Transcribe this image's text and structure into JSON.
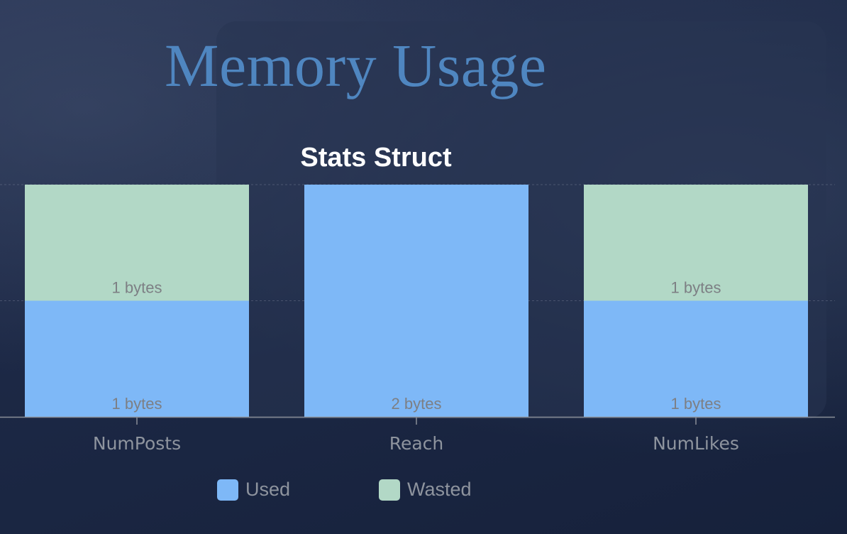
{
  "page": {
    "title": "Memory Usage"
  },
  "chart_data": {
    "type": "bar",
    "stacked": true,
    "title": "Stats Struct",
    "categories": [
      "NumPosts",
      "Reach",
      "NumLikes"
    ],
    "series": [
      {
        "name": "Used",
        "values": [
          1,
          2,
          1
        ],
        "color": "#7eb8f7"
      },
      {
        "name": "Wasted",
        "values": [
          1,
          0,
          1
        ],
        "color": "#b2d8c6"
      }
    ],
    "data_labels": [
      [
        "1 bytes",
        "2 bytes",
        "1 bytes"
      ],
      [
        "1 bytes",
        "",
        "1 bytes"
      ]
    ],
    "ylim": [
      0,
      2
    ],
    "grid": true,
    "legend": "bottom",
    "xlabel": "",
    "ylabel": ""
  }
}
